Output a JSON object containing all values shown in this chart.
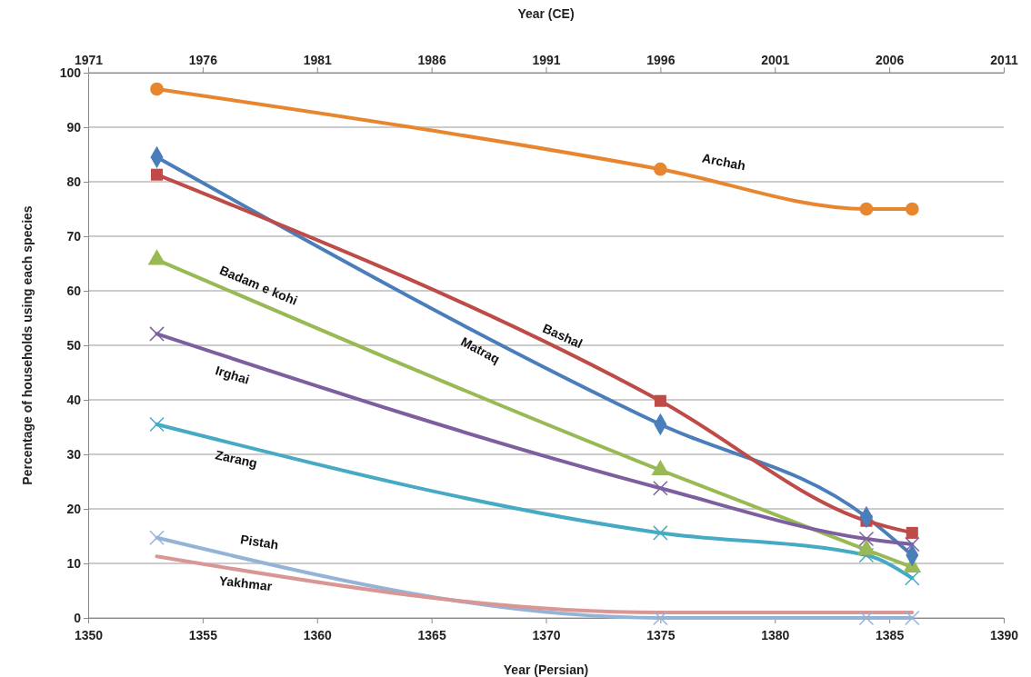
{
  "chart_data": {
    "type": "line",
    "xlabel": "Year (Persian)",
    "x2label": "Year (CE)",
    "ylabel": "Percentage of households using each species",
    "x": [
      1353,
      1375,
      1384,
      1386
    ],
    "xlim": [
      1350,
      1390
    ],
    "xticks": [
      1350,
      1355,
      1360,
      1365,
      1370,
      1375,
      1380,
      1385,
      1390
    ],
    "x2lim": [
      1971,
      2011
    ],
    "x2ticks": [
      1971,
      1976,
      1981,
      1986,
      1991,
      1996,
      2001,
      2006,
      2011
    ],
    "ylim": [
      0,
      100
    ],
    "yticks": [
      0,
      10,
      20,
      30,
      40,
      50,
      60,
      70,
      80,
      90,
      100
    ],
    "grid": "y",
    "series": [
      {
        "name": "Archah",
        "color": "#e8862f",
        "marker": "circle",
        "values": [
          97,
          82.3,
          75,
          75
        ]
      },
      {
        "name": "Matraq",
        "color": "#4a7ebb",
        "marker": "diamond",
        "values": [
          84.5,
          35.5,
          18.5,
          11.5
        ]
      },
      {
        "name": "Bashal",
        "color": "#be4b48",
        "marker": "square",
        "values": [
          81.3,
          39.8,
          17.8,
          15.6
        ]
      },
      {
        "name": "Badam e kohi",
        "color": "#98b954",
        "marker": "triangle",
        "values": [
          65.7,
          27.1,
          12.5,
          9.3
        ]
      },
      {
        "name": "Irghai",
        "color": "#7d5fa0",
        "marker": "cross",
        "values": [
          52.1,
          23.8,
          14.5,
          13.5
        ]
      },
      {
        "name": "Zarang",
        "color": "#46aac5",
        "marker": "cross",
        "values": [
          35.5,
          15.6,
          11.5,
          7.3
        ]
      },
      {
        "name": "Pistah",
        "color": "#95b3d7",
        "marker": "cross",
        "values": [
          14.7,
          0,
          0,
          0
        ]
      },
      {
        "name": "Yakhmar",
        "color": "#d99694",
        "marker": "none",
        "values": [
          11.3,
          1,
          1,
          1
        ]
      }
    ]
  }
}
